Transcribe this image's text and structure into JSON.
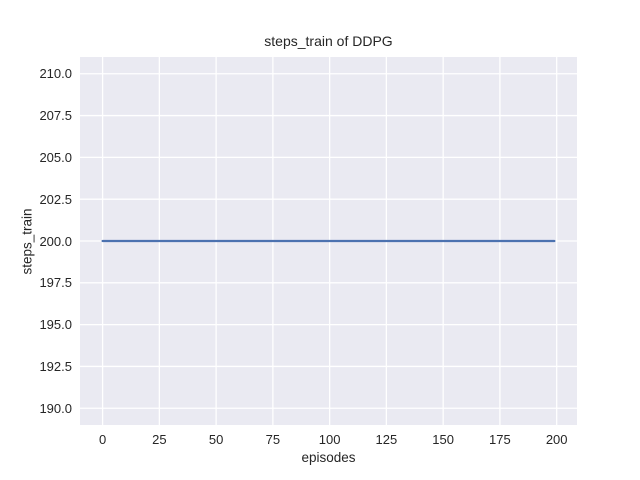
{
  "chart_data": {
    "type": "line",
    "title": "steps_train of DDPG",
    "xlabel": "episodes",
    "ylabel": "steps_train",
    "x_tick_values": [
      0,
      25,
      50,
      75,
      100,
      125,
      150,
      175,
      200
    ],
    "x_tick_labels": [
      "0",
      "25",
      "50",
      "75",
      "100",
      "125",
      "150",
      "175",
      "200"
    ],
    "y_tick_values": [
      190.0,
      192.5,
      195.0,
      197.5,
      200.0,
      202.5,
      205.0,
      207.5,
      210.0
    ],
    "y_tick_labels": [
      "190.0",
      "192.5",
      "195.0",
      "197.5",
      "200.0",
      "202.5",
      "205.0",
      "207.5",
      "210.0"
    ],
    "xlim": [
      -9.95,
      208.95
    ],
    "ylim": [
      189,
      211
    ],
    "grid": true,
    "legend": "none",
    "colors": {
      "plot_background": "#eaeaf2",
      "grid_line": "#ffffff",
      "text": "#262626",
      "series_line": "#4c72b0"
    },
    "series": [
      {
        "name": "steps_train",
        "x": [
          0,
          199
        ],
        "y": [
          200,
          200
        ],
        "color": "#4c72b0",
        "note": "constant line at y=200 spanning episodes 0 to 199"
      }
    ]
  }
}
